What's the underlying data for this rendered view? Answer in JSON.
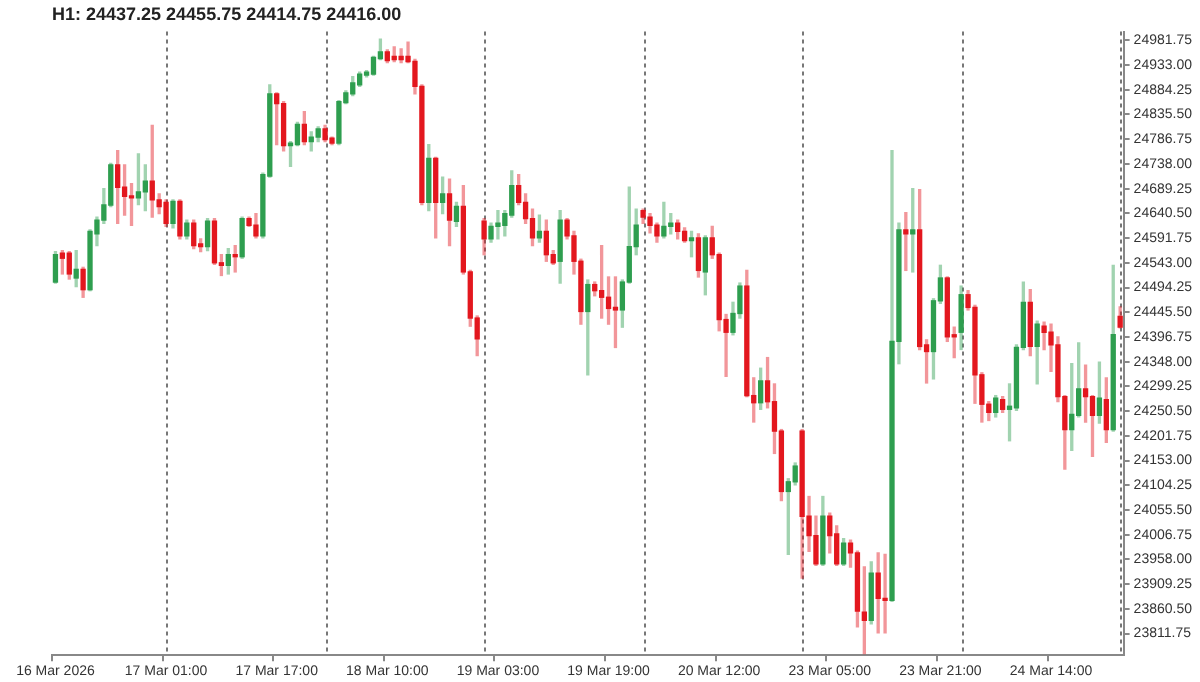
{
  "chart_data": {
    "type": "candlestick",
    "title": "H1: 24437.25 24455.75 24414.75 24416.00",
    "categories": [
      "16 Mar 2026",
      null,
      null,
      null,
      null,
      null,
      null,
      null,
      null,
      null,
      null,
      null,
      null,
      null,
      null,
      null,
      "17 Mar 01:00",
      null,
      null,
      null,
      null,
      null,
      null,
      null,
      null,
      null,
      null,
      null,
      null,
      null,
      null,
      null,
      "17 Mar 17:00",
      null,
      null,
      null,
      null,
      null,
      null,
      null,
      null,
      null,
      null,
      null,
      null,
      null,
      null,
      null,
      "18 Mar 10:00",
      null,
      null,
      null,
      null,
      null,
      null,
      null,
      null,
      null,
      null,
      null,
      null,
      null,
      null,
      null,
      "19 Mar 03:00",
      null,
      null,
      null,
      null,
      null,
      null,
      null,
      null,
      null,
      null,
      null,
      null,
      null,
      null,
      null,
      "19 Mar 19:00",
      null,
      null,
      null,
      null,
      null,
      null,
      null,
      null,
      null,
      null,
      null,
      null,
      null,
      null,
      null,
      "20 Mar 12:00",
      null,
      null,
      null,
      null,
      null,
      null,
      null,
      null,
      null,
      null,
      null,
      null,
      null,
      null,
      null,
      "23 Mar 05:00",
      null,
      null,
      null,
      null,
      null,
      null,
      null,
      null,
      null,
      null,
      null,
      null,
      null,
      null,
      null,
      "23 Mar 21:00",
      null,
      null,
      null,
      null,
      null,
      null,
      null,
      null,
      null,
      null,
      null,
      null,
      null,
      null,
      null,
      "24 Mar 14:00",
      null,
      null,
      null,
      null,
      null,
      null,
      null,
      null,
      null,
      null
    ],
    "ohlc": [
      [
        24505,
        24565,
        24503,
        24559
      ],
      [
        24562,
        24567,
        24521,
        24552
      ],
      [
        24562,
        24565,
        24511,
        24521
      ],
      [
        24513,
        24567,
        24496,
        24530
      ],
      [
        24530,
        24534,
        24475,
        24490
      ],
      [
        24490,
        24608,
        24488,
        24605
      ],
      [
        24600,
        24633,
        24577,
        24627
      ],
      [
        24627,
        24689,
        24621,
        24657
      ],
      [
        24657,
        24739,
        24654,
        24736
      ],
      [
        24736,
        24764,
        24621,
        24692
      ],
      [
        24692,
        24736,
        24637,
        24674
      ],
      [
        24674,
        24699,
        24617,
        24671
      ],
      [
        24671,
        24758,
        24658,
        24683
      ],
      [
        24683,
        24736,
        24646,
        24704
      ],
      [
        24704,
        24814,
        24633,
        24667
      ],
      [
        24667,
        24679,
        24640,
        24654
      ],
      [
        24662,
        24667,
        24615,
        24621
      ],
      [
        24621,
        24667,
        24612,
        24664
      ],
      [
        24664,
        24667,
        24590,
        24596
      ],
      [
        24596,
        24627,
        24590,
        24621
      ],
      [
        24621,
        24627,
        24571,
        24577
      ],
      [
        24580,
        24590,
        24565,
        24575
      ],
      [
        24575,
        24630,
        24567,
        24625
      ],
      [
        24625,
        24630,
        24540,
        24543
      ],
      [
        24543,
        24559,
        24518,
        24538
      ],
      [
        24538,
        24571,
        24521,
        24559
      ],
      [
        24559,
        24577,
        24525,
        24555
      ],
      [
        24555,
        24633,
        24552,
        24630
      ],
      [
        24630,
        24633,
        24615,
        24617
      ],
      [
        24617,
        24640,
        24592,
        24596
      ],
      [
        24596,
        24720,
        24592,
        24717
      ],
      [
        24714,
        24894,
        24712,
        24876
      ],
      [
        24876,
        24878,
        24776,
        24857
      ],
      [
        24857,
        24861,
        24764,
        24774
      ],
      [
        24774,
        24782,
        24733,
        24779
      ],
      [
        24776,
        24820,
        24774,
        24816
      ],
      [
        24816,
        24841,
        24776,
        24782
      ],
      [
        24782,
        24801,
        24764,
        24791
      ],
      [
        24791,
        24811,
        24782,
        24807
      ],
      [
        24807,
        24814,
        24782,
        24786
      ],
      [
        24789,
        24791,
        24776,
        24779
      ],
      [
        24779,
        24863,
        24776,
        24861
      ],
      [
        24859,
        24882,
        24857,
        24878
      ],
      [
        24876,
        24910,
        24873,
        24898
      ],
      [
        24894,
        24919,
        24891,
        24915
      ],
      [
        24913,
        24922,
        24910,
        24919
      ],
      [
        24915,
        24950,
        24913,
        24948
      ],
      [
        24946,
        24984,
        24944,
        24959
      ],
      [
        24959,
        24963,
        24938,
        24942
      ],
      [
        24950,
        24969,
        24940,
        24944
      ],
      [
        24950,
        24965,
        24938,
        24944
      ],
      [
        24950,
        24978,
        24938,
        24940
      ],
      [
        24940,
        24944,
        24876,
        24891
      ],
      [
        24891,
        24894,
        24658,
        24662
      ],
      [
        24662,
        24776,
        24646,
        24749
      ],
      [
        24749,
        24751,
        24592,
        24662
      ],
      [
        24662,
        24712,
        24640,
        24679
      ],
      [
        24679,
        24708,
        24577,
        24627
      ],
      [
        24625,
        24662,
        24615,
        24654
      ],
      [
        24654,
        24695,
        24521,
        24525
      ],
      [
        24525,
        24528,
        24418,
        24434
      ],
      [
        24434,
        24438,
        24360,
        24393
      ],
      [
        24625,
        24630,
        24559,
        24590
      ],
      [
        24590,
        24621,
        24584,
        24615
      ],
      [
        24615,
        24646,
        24590,
        24621
      ],
      [
        24617,
        24646,
        24596,
        24640
      ],
      [
        24637,
        24724,
        24633,
        24695
      ],
      [
        24695,
        24717,
        24658,
        24662
      ],
      [
        24662,
        24679,
        24621,
        24630
      ],
      [
        24630,
        24649,
        24577,
        24592
      ],
      [
        24592,
        24637,
        24584,
        24605
      ],
      [
        24605,
        24627,
        24546,
        24559
      ],
      [
        24559,
        24567,
        24540,
        24543
      ],
      [
        24546,
        24646,
        24503,
        24627
      ],
      [
        24627,
        24630,
        24590,
        24596
      ],
      [
        24596,
        24605,
        24521,
        24546
      ],
      [
        24546,
        24550,
        24422,
        24447
      ],
      [
        24447,
        24509,
        24322,
        24500
      ],
      [
        24500,
        24505,
        24478,
        24488
      ],
      [
        24488,
        24577,
        24434,
        24475
      ],
      [
        24475,
        24515,
        24422,
        24453
      ],
      [
        24455,
        24515,
        24376,
        24450
      ],
      [
        24450,
        24509,
        24416,
        24505
      ],
      [
        24505,
        24692,
        24503,
        24575
      ],
      [
        24575,
        24649,
        24559,
        24617
      ],
      [
        24646,
        24649,
        24621,
        24633
      ],
      [
        24633,
        24640,
        24602,
        24617
      ],
      [
        24617,
        24621,
        24584,
        24596
      ],
      [
        24596,
        24662,
        24592,
        24615
      ],
      [
        24615,
        24640,
        24600,
        24621
      ],
      [
        24621,
        24627,
        24590,
        24605
      ],
      [
        24605,
        24612,
        24584,
        24587
      ],
      [
        24587,
        24605,
        24555,
        24592
      ],
      [
        24592,
        24600,
        24515,
        24528
      ],
      [
        24525,
        24596,
        24480,
        24592
      ],
      [
        24592,
        24615,
        24552,
        24559
      ],
      [
        24559,
        24562,
        24409,
        24431
      ],
      [
        24431,
        24441,
        24319,
        24406
      ],
      [
        24406,
        24465,
        24401,
        24443
      ],
      [
        24443,
        24503,
        24434,
        24497
      ],
      [
        24497,
        24528,
        24279,
        24281
      ],
      [
        24281,
        24316,
        24229,
        24267
      ],
      [
        24267,
        24335,
        24254,
        24310
      ],
      [
        24310,
        24356,
        24257,
        24269
      ],
      [
        24269,
        24304,
        24167,
        24211
      ],
      [
        24211,
        24214,
        24074,
        24092
      ],
      [
        24092,
        24117,
        23968,
        24111
      ],
      [
        24111,
        24148,
        24105,
        24142
      ],
      [
        24211,
        24214,
        23921,
        24043
      ],
      [
        24043,
        24082,
        23974,
        24005
      ],
      [
        24005,
        24043,
        23946,
        23949
      ],
      [
        23949,
        24082,
        23946,
        24043
      ],
      [
        24043,
        24049,
        23971,
        24005
      ],
      [
        24008,
        24024,
        23946,
        23949
      ],
      [
        23949,
        23999,
        23946,
        23990
      ],
      [
        23990,
        23996,
        23943,
        23971
      ],
      [
        23971,
        23974,
        23825,
        23856
      ],
      [
        23854,
        23943,
        23772,
        23838
      ],
      [
        23838,
        23953,
        23831,
        23931
      ],
      [
        23931,
        23971,
        23813,
        23881
      ],
      [
        23881,
        23968,
        23813,
        23877
      ],
      [
        23877,
        24764,
        23875,
        24388
      ],
      [
        24388,
        24621,
        24344,
        24608
      ],
      [
        24608,
        24642,
        24528,
        24600
      ],
      [
        24600,
        24689,
        24525,
        24608
      ],
      [
        24608,
        24687,
        24372,
        24378
      ],
      [
        24381,
        24391,
        24306,
        24368
      ],
      [
        24368,
        24472,
        24314,
        24468
      ],
      [
        24468,
        24538,
        24463,
        24513
      ],
      [
        24513,
        24515,
        24388,
        24397
      ],
      [
        24401,
        24416,
        24356,
        24397
      ],
      [
        24406,
        24497,
        24372,
        24480
      ],
      [
        24480,
        24488,
        24450,
        24455
      ],
      [
        24455,
        24459,
        24266,
        24322
      ],
      [
        24322,
        24326,
        24229,
        24264
      ],
      [
        24264,
        24269,
        24232,
        24248
      ],
      [
        24248,
        24281,
        24239,
        24276
      ],
      [
        24273,
        24279,
        24248,
        24254
      ],
      [
        24254,
        24304,
        24192,
        24260
      ],
      [
        24257,
        24381,
        24252,
        24376
      ],
      [
        24376,
        24505,
        24372,
        24465
      ],
      [
        24465,
        24490,
        24360,
        24378
      ],
      [
        24378,
        24428,
        24304,
        24422
      ],
      [
        24418,
        24426,
        24372,
        24406
      ],
      [
        24406,
        24422,
        24329,
        24381
      ],
      [
        24381,
        24397,
        24269,
        24279
      ],
      [
        24279,
        24281,
        24136,
        24214
      ],
      [
        24214,
        24344,
        24173,
        24244
      ],
      [
        24242,
        24385,
        24239,
        24294
      ],
      [
        24294,
        24341,
        24229,
        24279
      ],
      [
        24279,
        24281,
        24161,
        24242
      ],
      [
        24242,
        24347,
        24227,
        24276
      ],
      [
        24273,
        24316,
        24189,
        24214
      ],
      [
        24214,
        24538,
        24211,
        24401
      ],
      [
        24437.25,
        24455.75,
        24414.75,
        24416
      ]
    ],
    "colors": [
      "#2e9e4f",
      "#e3171e",
      "#e3171e",
      "#2e9e4f",
      "#e3171e",
      "#2e9e4f",
      "#2e9e4f",
      "#2e9e4f",
      "#2e9e4f",
      "#e3171e",
      "#e3171e",
      "#e3171e",
      "#2e9e4f",
      "#2e9e4f",
      "#e3171e",
      "#e3171e",
      "#e3171e",
      "#2e9e4f",
      "#e3171e",
      "#2e9e4f",
      "#e3171e",
      "#e3171e",
      "#2e9e4f",
      "#e3171e",
      "#e3171e",
      "#2e9e4f",
      "#e3171e",
      "#2e9e4f",
      "#e3171e",
      "#e3171e",
      "#2e9e4f",
      "#2e9e4f",
      "#e3171e",
      "#e3171e",
      "#2e9e4f",
      "#2e9e4f",
      "#e3171e",
      "#2e9e4f",
      "#2e9e4f",
      "#e3171e",
      "#e3171e",
      "#2e9e4f",
      "#2e9e4f",
      "#2e9e4f",
      "#2e9e4f",
      "#2e9e4f",
      "#2e9e4f",
      "#2e9e4f",
      "#e3171e",
      "#e3171e",
      "#e3171e",
      "#e3171e",
      "#e3171e",
      "#e3171e",
      "#2e9e4f",
      "#e3171e",
      "#2e9e4f",
      "#e3171e",
      "#2e9e4f",
      "#e3171e",
      "#e3171e",
      "#e3171e",
      "#e3171e",
      "#2e9e4f",
      "#2e9e4f",
      "#2e9e4f",
      "#2e9e4f",
      "#e3171e",
      "#e3171e",
      "#e3171e",
      "#2e9e4f",
      "#e3171e",
      "#e3171e",
      "#2e9e4f",
      "#e3171e",
      "#e3171e",
      "#e3171e",
      "#2e9e4f",
      "#e3171e",
      "#e3171e",
      "#e3171e",
      "#e3171e",
      "#2e9e4f",
      "#2e9e4f",
      "#2e9e4f",
      "#e3171e",
      "#e3171e",
      "#e3171e",
      "#2e9e4f",
      "#2e9e4f",
      "#e3171e",
      "#e3171e",
      "#2e9e4f",
      "#e3171e",
      "#2e9e4f",
      "#e3171e",
      "#e3171e",
      "#e3171e",
      "#2e9e4f",
      "#2e9e4f",
      "#e3171e",
      "#e3171e",
      "#2e9e4f",
      "#e3171e",
      "#e3171e",
      "#e3171e",
      "#2e9e4f",
      "#2e9e4f",
      "#e3171e",
      "#e3171e",
      "#e3171e",
      "#2e9e4f",
      "#e3171e",
      "#e3171e",
      "#2e9e4f",
      "#e3171e",
      "#e3171e",
      "#e3171e",
      "#2e9e4f",
      "#e3171e",
      "#e3171e",
      "#2e9e4f",
      "#2e9e4f",
      "#e3171e",
      "#2e9e4f",
      "#e3171e",
      "#e3171e",
      "#2e9e4f",
      "#2e9e4f",
      "#e3171e",
      "#e3171e",
      "#2e9e4f",
      "#e3171e",
      "#e3171e",
      "#e3171e",
      "#e3171e",
      "#2e9e4f",
      "#e3171e",
      "#2e9e4f",
      "#2e9e4f",
      "#2e9e4f",
      "#e3171e",
      "#2e9e4f",
      "#e3171e",
      "#e3171e",
      "#e3171e",
      "#e3171e",
      "#2e9e4f",
      "#2e9e4f",
      "#e3171e",
      "#e3171e",
      "#2e9e4f",
      "#e3171e",
      "#2e9e4f",
      "#e3171e"
    ],
    "ylim": [
      23769,
      24999
    ],
    "yticks": [
      24981.75,
      {
        "value": 24933,
        "label": "24933.00"
      },
      24884.25,
      {
        "value": 24835.5,
        "label": "24835.50"
      },
      24786.75,
      {
        "value": 24738,
        "label": "24738.00"
      },
      24689.25,
      {
        "value": 24640.5,
        "label": "24640.50"
      },
      24591.75,
      {
        "value": 24543,
        "label": "24543.00"
      },
      24494.25,
      {
        "value": 24445.5,
        "label": "24445.50"
      },
      24396.75,
      {
        "value": 24348,
        "label": "24348.00"
      },
      24299.25,
      {
        "value": 24250.5,
        "label": "24250.50"
      },
      24201.75,
      {
        "value": 24153,
        "label": "24153.00"
      },
      24104.25,
      {
        "value": 24055.5,
        "label": "24055.50"
      },
      24006.75,
      {
        "value": 23958,
        "label": "23958.00"
      },
      23909.25,
      {
        "value": 23860.5,
        "label": "23860.50"
      },
      23811.75
    ]
  }
}
